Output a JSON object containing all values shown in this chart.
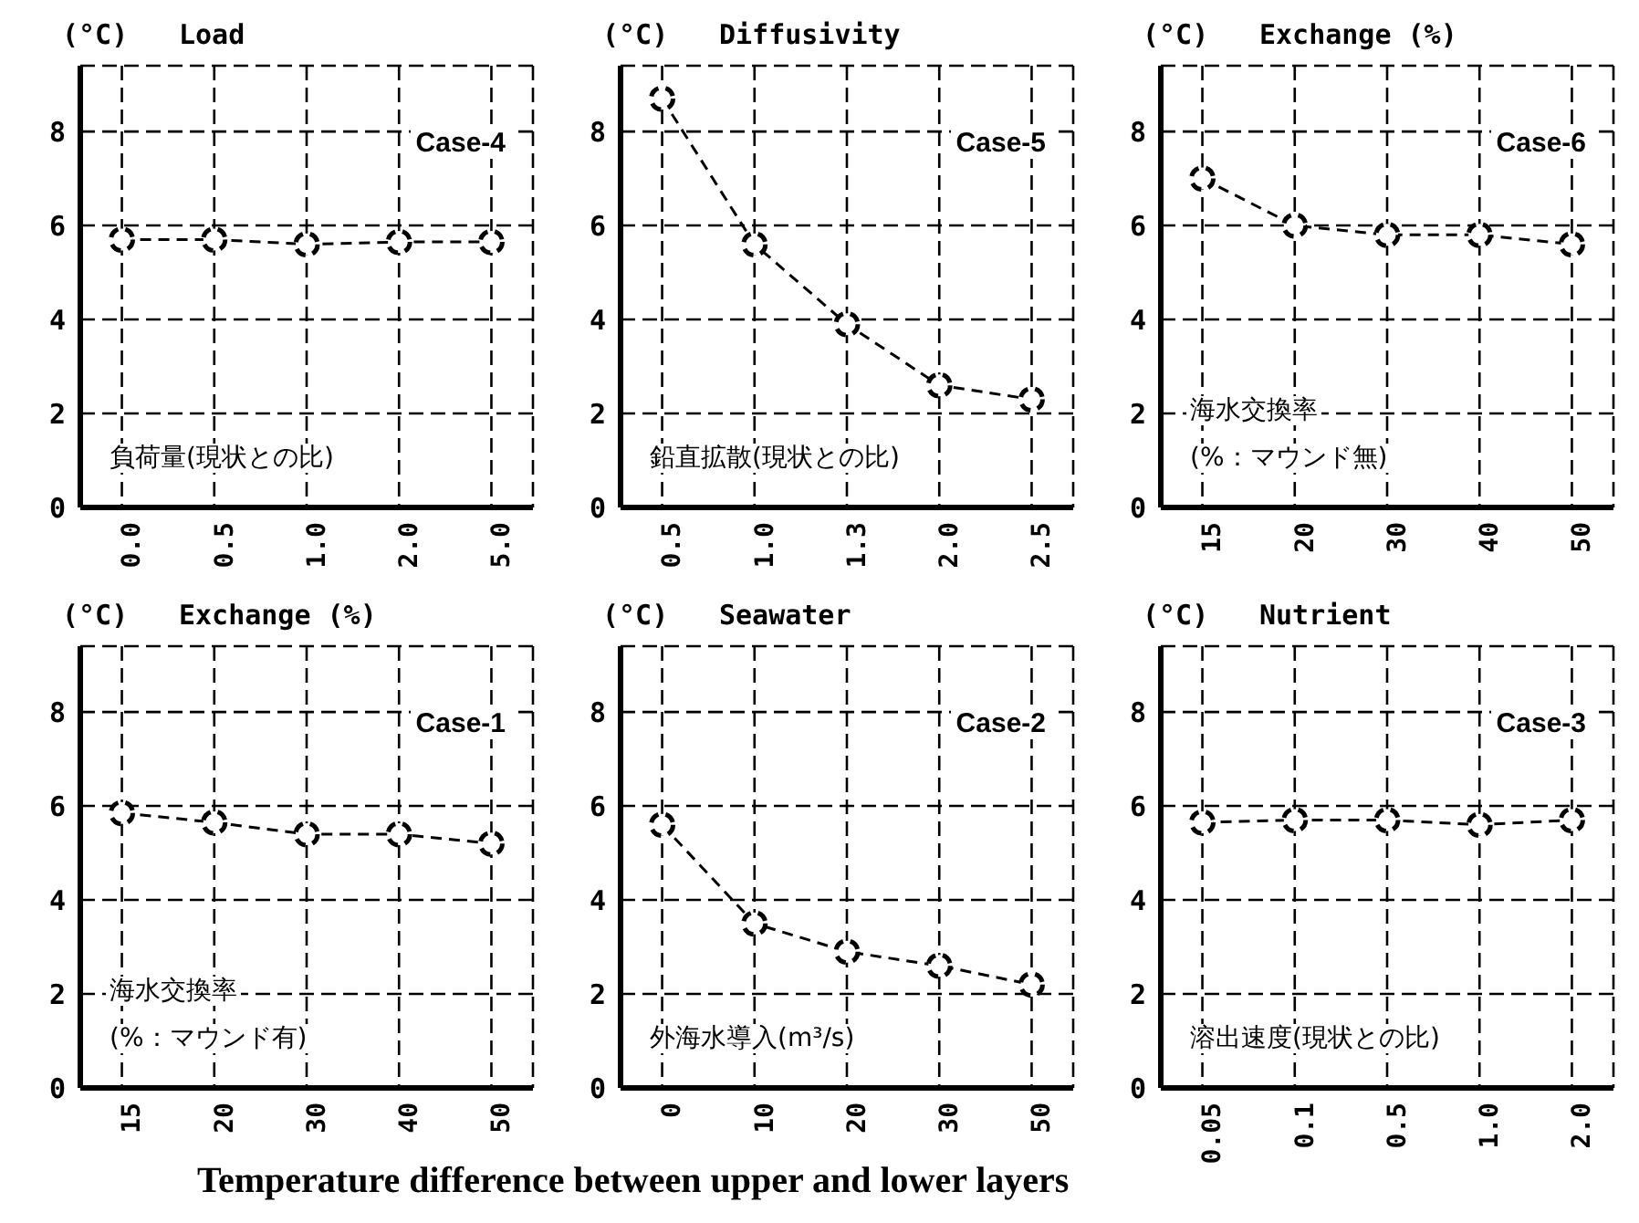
{
  "chart_data": [
    {
      "type": "line",
      "title": "Load",
      "ylabel": "(°C)",
      "categories": [
        "0.0",
        "0.5",
        "1.0",
        "2.0",
        "5.0"
      ],
      "series": [
        {
          "color": "#000000",
          "values": [
            5.7,
            5.7,
            5.6,
            5.65,
            5.65
          ]
        }
      ],
      "ylim": [
        0,
        9.4
      ],
      "yticks": [
        0,
        2,
        4,
        6,
        8
      ],
      "grid": true,
      "marker": "circle",
      "line_style": "dashed",
      "annotations": [
        "Case-4",
        "負荷量(現状との比)"
      ]
    },
    {
      "type": "line",
      "title": "Diffusivity",
      "ylabel": "(°C)",
      "categories": [
        "0.5",
        "1.0",
        "1.3",
        "2.0",
        "2.5"
      ],
      "series": [
        {
          "color": "#000000",
          "values": [
            8.7,
            5.6,
            3.9,
            2.6,
            2.3
          ]
        }
      ],
      "ylim": [
        0,
        9.4
      ],
      "yticks": [
        0,
        2,
        4,
        6,
        8
      ],
      "grid": true,
      "marker": "circle",
      "line_style": "dashed",
      "annotations": [
        "Case-5",
        "鉛直拡散(現状との比)"
      ]
    },
    {
      "type": "line",
      "title": "Exchange (%)",
      "ylabel": "(°C)",
      "categories": [
        "15",
        "20",
        "30",
        "40",
        "50"
      ],
      "series": [
        {
          "color": "#000000",
          "values": [
            7.0,
            6.0,
            5.8,
            5.8,
            5.6
          ]
        }
      ],
      "ylim": [
        0,
        9.4
      ],
      "yticks": [
        0,
        2,
        4,
        6,
        8
      ],
      "grid": true,
      "marker": "circle",
      "line_style": "dashed",
      "annotations": [
        "Case-6",
        "海水交換率",
        "(%：マウンド無)"
      ]
    },
    {
      "type": "line",
      "title": "Exchange (%)",
      "ylabel": "(°C)",
      "categories": [
        "15",
        "20",
        "30",
        "40",
        "50"
      ],
      "series": [
        {
          "color": "#000000",
          "values": [
            5.85,
            5.65,
            5.4,
            5.4,
            5.2
          ]
        }
      ],
      "ylim": [
        0,
        9.4
      ],
      "yticks": [
        0,
        2,
        4,
        6,
        8
      ],
      "grid": true,
      "marker": "circle",
      "line_style": "dashed",
      "annotations": [
        "Case-1",
        "海水交換率",
        "(%：マウンド有)"
      ]
    },
    {
      "type": "line",
      "title": "Seawater",
      "ylabel": "(°C)",
      "categories": [
        "0",
        "10",
        "20",
        "30",
        "50"
      ],
      "series": [
        {
          "color": "#000000",
          "values": [
            5.6,
            3.5,
            2.9,
            2.6,
            2.2
          ]
        }
      ],
      "ylim": [
        0,
        9.4
      ],
      "yticks": [
        0,
        2,
        4,
        6,
        8
      ],
      "grid": true,
      "marker": "circle",
      "line_style": "dashed",
      "annotations": [
        "Case-2",
        "外海水導入(m³/s)"
      ]
    },
    {
      "type": "line",
      "title": "Nutrient",
      "ylabel": "(°C)",
      "categories": [
        "0.05",
        "0.1",
        "0.5",
        "1.0",
        "2.0"
      ],
      "series": [
        {
          "color": "#000000",
          "values": [
            5.65,
            5.7,
            5.7,
            5.6,
            5.7
          ]
        }
      ],
      "ylim": [
        0,
        9.4
      ],
      "yticks": [
        0,
        2,
        4,
        6,
        8
      ],
      "grid": true,
      "marker": "circle",
      "line_style": "dashed",
      "annotations": [
        "Case-3",
        "溶出速度(現状との比)"
      ]
    },
    {
      "type": "other",
      "title": "Temperature difference between upper and lower layers"
    }
  ]
}
